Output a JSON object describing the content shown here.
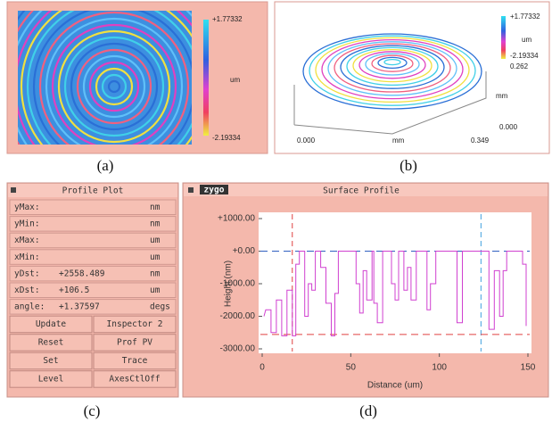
{
  "panel_a": {
    "caption": "(a)",
    "colorbar": {
      "max": "+1.77332",
      "unit": "um",
      "min": "-2.19334"
    }
  },
  "panel_b": {
    "caption": "(b)",
    "colorbar": {
      "max": "+1.77332",
      "unit": "um",
      "min": "-2.19334"
    },
    "y_axis": {
      "max": "0.262",
      "unit": "mm",
      "min": "0.000"
    },
    "x_axis": {
      "min": "0.000",
      "unit": "mm",
      "max": "0.349"
    }
  },
  "panel_c": {
    "caption": "(c)",
    "title": "Profile Plot",
    "rows": [
      {
        "label": "yMax:",
        "unit": "nm"
      },
      {
        "label": "yMin:",
        "unit": "nm"
      },
      {
        "label": "xMax:",
        "unit": "um"
      },
      {
        "label": "xMin:",
        "unit": "um"
      },
      {
        "label": "yDst:",
        "value": "+2558.489",
        "unit": "nm"
      },
      {
        "label": "xDst:",
        "value": "+106.5",
        "unit": "um"
      },
      {
        "label": "angle:",
        "value": "+1.37597",
        "unit": "degs"
      }
    ],
    "buttons": [
      [
        "Update",
        "Inspector 2"
      ],
      [
        "Reset",
        "Prof PV"
      ],
      [
        "Set",
        "Trace"
      ],
      [
        "Level",
        "AxesCtlOff"
      ]
    ]
  },
  "panel_d": {
    "caption": "(d)",
    "logo": "zygo",
    "title": "Surface Profile",
    "chart": {
      "type": "line",
      "color": "#d040d0",
      "xlabel": "Distance (um)",
      "ylabel": "Height (nm)",
      "xlim": [
        0,
        150
      ],
      "ylim": [
        -3000,
        1000
      ],
      "xticks": [
        0,
        50,
        100,
        150
      ],
      "yticks": [
        {
          "value": 1000,
          "label": "+1000.00"
        },
        {
          "value": 0,
          "label": "+0.00"
        },
        {
          "value": -1000,
          "label": "-1000.00"
        },
        {
          "value": -2000,
          "label": "-2000.00"
        },
        {
          "value": -3000,
          "label": "-3000.00"
        }
      ],
      "cursor_x": [
        17,
        123.5
      ],
      "cursor_y": [
        0,
        -2558
      ],
      "x": [
        1,
        2,
        5,
        5,
        8,
        8,
        11,
        11,
        14,
        14,
        17,
        17,
        19,
        19,
        21,
        21,
        24,
        24,
        26,
        26,
        28,
        28,
        30,
        30,
        33,
        33,
        36,
        36,
        39,
        39,
        41,
        41,
        43,
        43,
        53,
        53,
        55,
        55,
        57,
        57,
        59,
        59,
        62,
        62,
        63,
        63,
        65,
        65,
        68,
        68,
        73,
        73,
        75,
        75,
        77,
        77,
        80,
        80,
        82,
        82,
        84,
        84,
        87,
        87,
        93,
        93,
        95,
        95,
        98,
        98,
        110,
        110,
        113,
        113,
        128,
        128,
        131,
        131,
        134,
        134,
        136,
        136,
        138,
        138,
        147,
        147,
        149,
        149
      ],
      "values": [
        -2000,
        -1800,
        -1800,
        -2500,
        -2500,
        -1500,
        -1500,
        -2600,
        -2600,
        -1200,
        -1200,
        -2600,
        -2600,
        -400,
        -400,
        0,
        0,
        -2000,
        -2000,
        -1000,
        -1000,
        -1200,
        -1200,
        0,
        0,
        -500,
        -500,
        -1600,
        -1600,
        -2600,
        -2600,
        -1300,
        -1300,
        0,
        0,
        -1000,
        -1000,
        -1900,
        -1900,
        -600,
        -600,
        -1500,
        -1500,
        0,
        0,
        -1600,
        -1600,
        -2200,
        -2200,
        0,
        0,
        -1000,
        -1000,
        -1500,
        -1500,
        0,
        0,
        -1200,
        -1200,
        -500,
        -500,
        -1500,
        -1500,
        0,
        0,
        -1800,
        -1800,
        -1000,
        -1000,
        0,
        0,
        -2200,
        -2200,
        0,
        0,
        -2400,
        -2400,
        -600,
        -600,
        -2000,
        -2000,
        -600,
        -600,
        0,
        0,
        -400,
        -400,
        -2300
      ]
    }
  }
}
